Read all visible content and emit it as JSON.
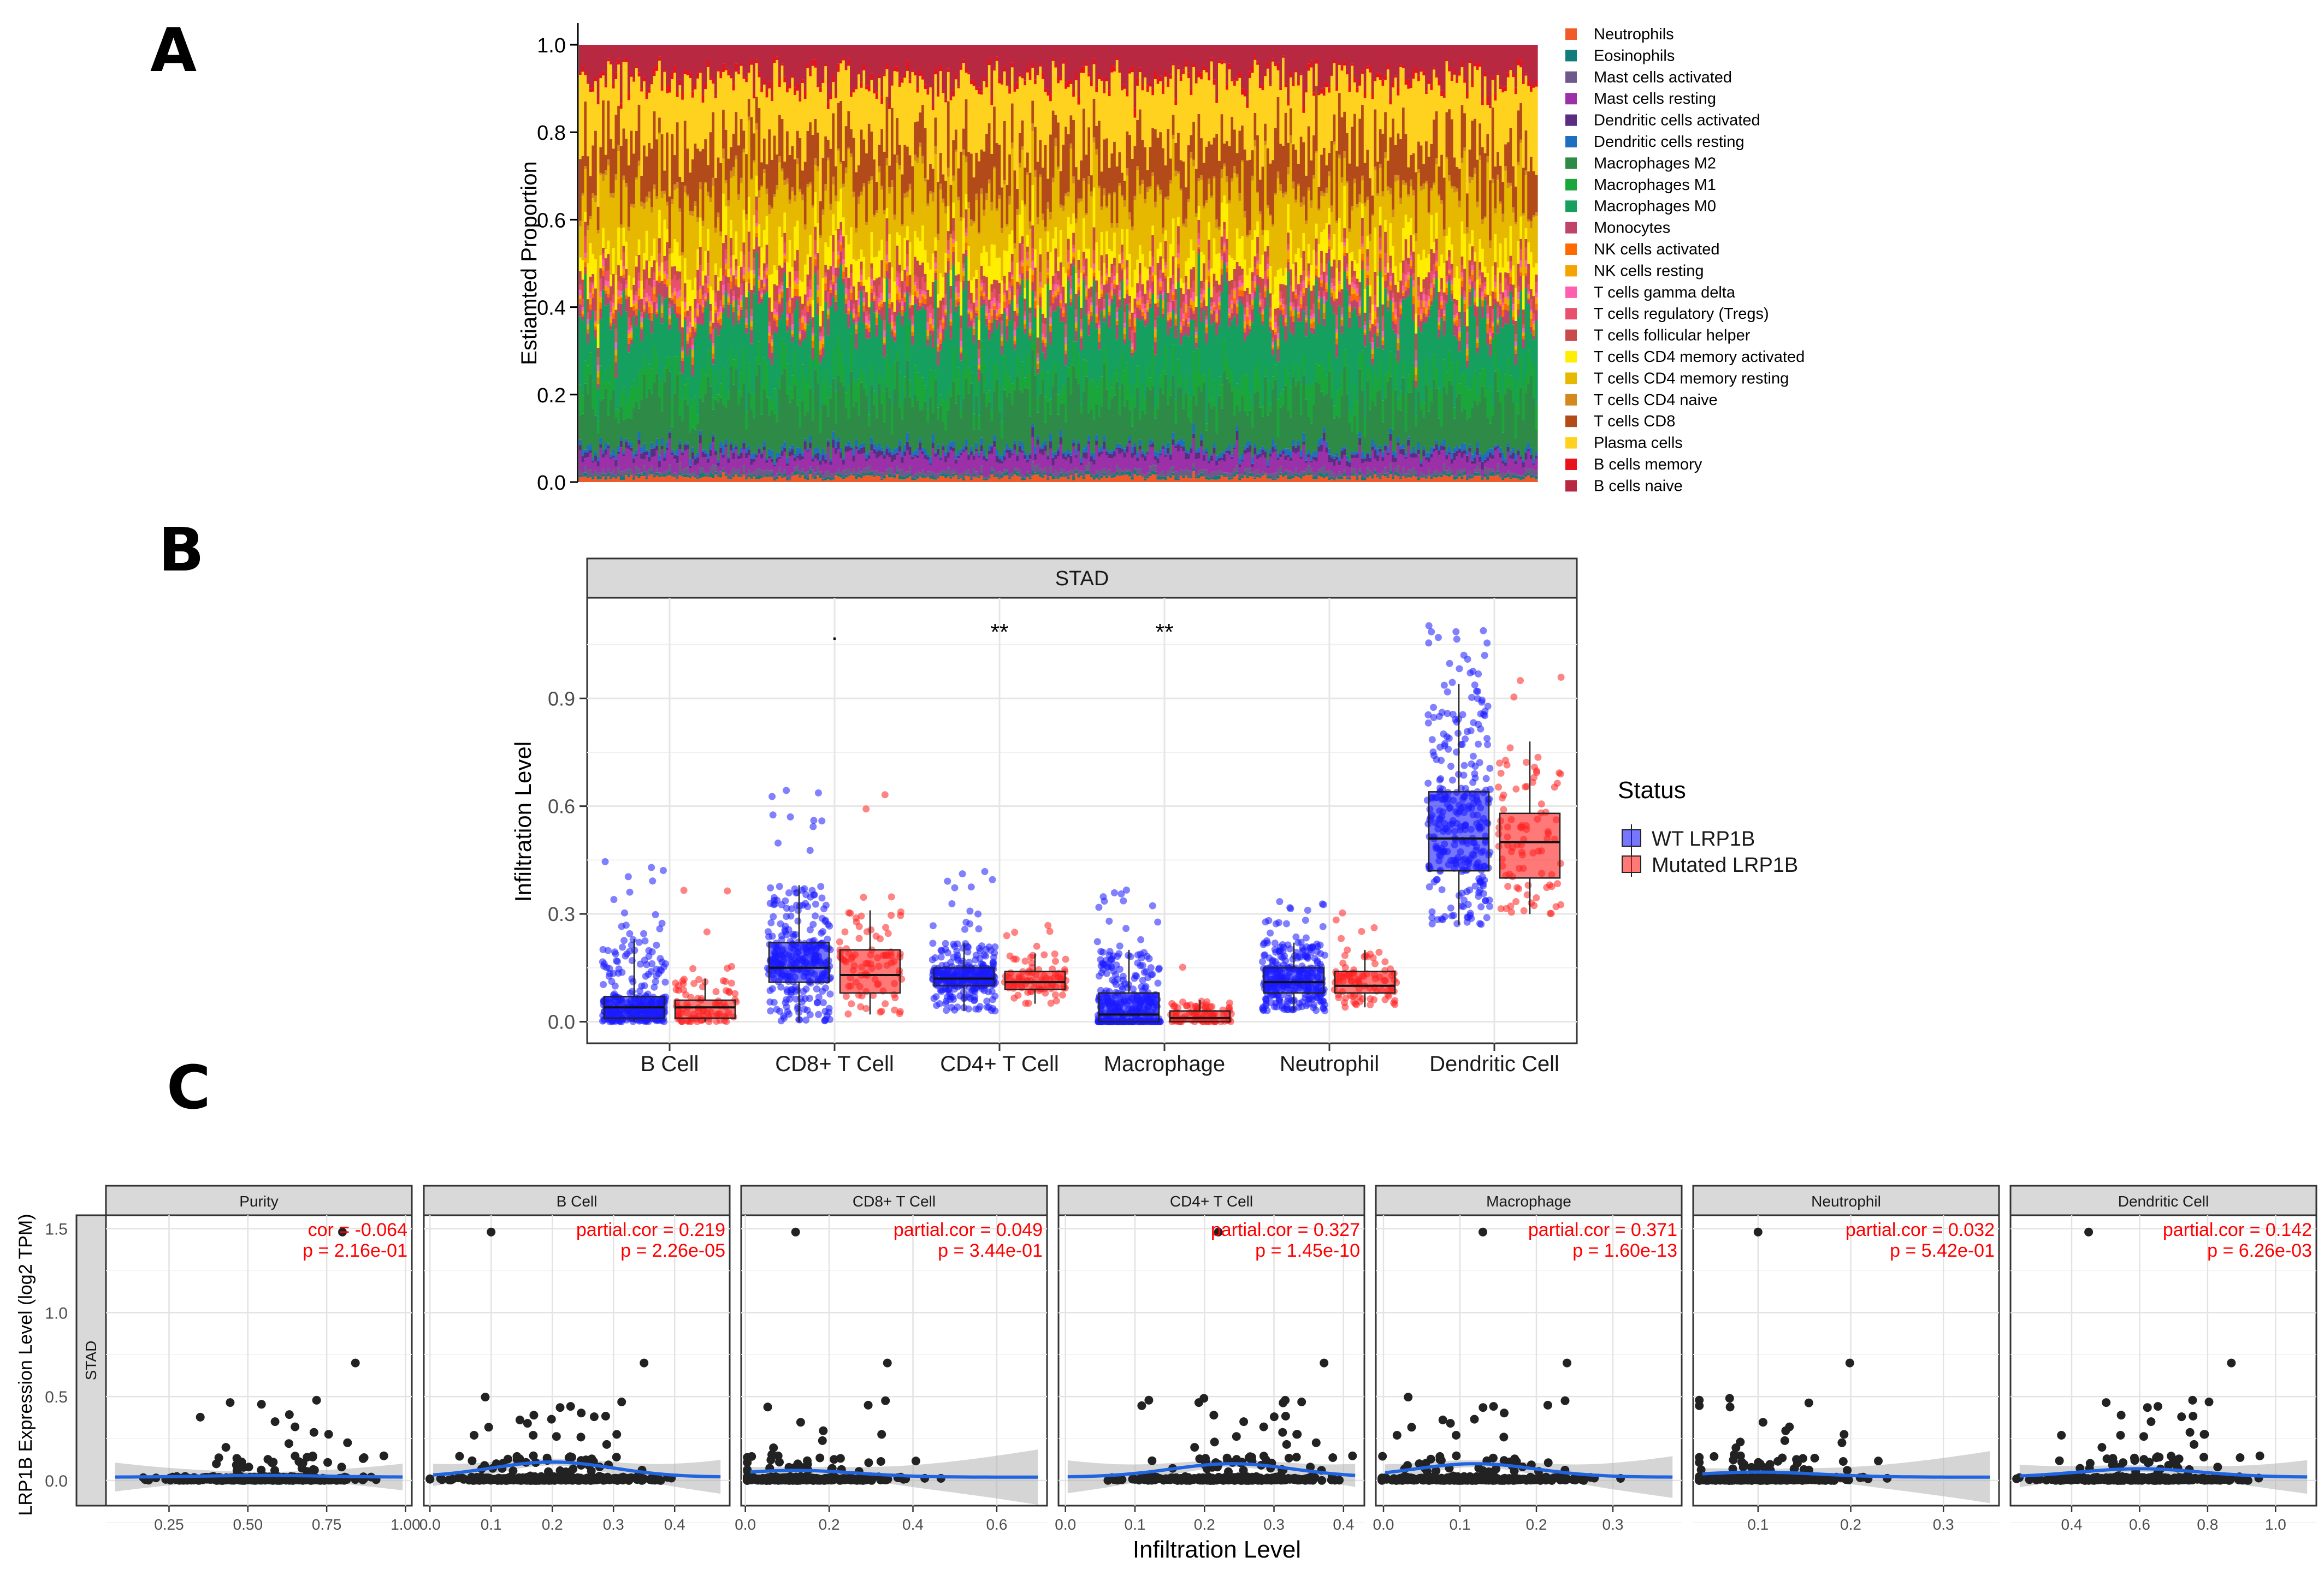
{
  "panels": {
    "A": {
      "letter": "A",
      "chart_data": {
        "type": "bar",
        "stacked": true,
        "n_samples": 375,
        "ylabel": "Estiamted Proportion",
        "ylim": [
          0,
          1.0
        ],
        "yticks": [
          "0.0",
          "0.2",
          "0.4",
          "0.6",
          "0.8",
          "1.0"
        ],
        "legend_position": "right",
        "series": [
          {
            "name": "Neutrophils",
            "color": "#f05a28",
            "mean": 0.01
          },
          {
            "name": "Eosinophils",
            "color": "#127c7c",
            "mean": 0.005
          },
          {
            "name": "Mast cells activated",
            "color": "#6d5a8a",
            "mean": 0.01
          },
          {
            "name": "Mast cells resting",
            "color": "#9b30a8",
            "mean": 0.03
          },
          {
            "name": "Dendritic cells activated",
            "color": "#5a2d82",
            "mean": 0.01
          },
          {
            "name": "Dendritic cells resting",
            "color": "#1f6fc0",
            "mean": 0.01
          },
          {
            "name": "Macrophages M2",
            "color": "#2e8b47",
            "mean": 0.1
          },
          {
            "name": "Macrophages M1",
            "color": "#1aa63a",
            "mean": 0.05
          },
          {
            "name": "Macrophages M0",
            "color": "#16a060",
            "mean": 0.13
          },
          {
            "name": "Monocytes",
            "color": "#c0446a",
            "mean": 0.02
          },
          {
            "name": "NK cells activated",
            "color": "#ff6a00",
            "mean": 0.01
          },
          {
            "name": "NK cells resting",
            "color": "#f5a300",
            "mean": 0.01
          },
          {
            "name": "T cells gamma delta",
            "color": "#ff5fb0",
            "mean": 0.01
          },
          {
            "name": "T cells regulatory (Tregs)",
            "color": "#e8506e",
            "mean": 0.02
          },
          {
            "name": "T cells follicular helper",
            "color": "#c84a4a",
            "mean": 0.03
          },
          {
            "name": "T cells CD4 memory activated",
            "color": "#ffee00",
            "mean": 0.05
          },
          {
            "name": "T cells CD4 memory resting",
            "color": "#e6b800",
            "mean": 0.12
          },
          {
            "name": "T cells CD4 naive",
            "color": "#d28a1e",
            "mean": 0.01
          },
          {
            "name": "T cells CD8",
            "color": "#b24a1a",
            "mean": 0.1
          },
          {
            "name": "Plasma cells",
            "color": "#ffd21f",
            "mean": 0.14
          },
          {
            "name": "B cells memory",
            "color": "#e8141c",
            "mean": 0.01
          },
          {
            "name": "B cells naive",
            "color": "#b82840",
            "mean": 0.07
          }
        ]
      }
    },
    "B": {
      "letter": "B",
      "chart_data": {
        "type": "box",
        "strip_title": "STAD",
        "ylabel": "Infiltration Level",
        "ylim": [
          -0.06,
          1.18
        ],
        "yticks": [
          "0.0",
          "0.3",
          "0.6",
          "0.9"
        ],
        "categories": [
          "B Cell",
          "CD8+ T Cell",
          "CD4+ T Cell",
          "Macrophage",
          "Neutrophil",
          "Dendritic Cell"
        ],
        "significance": [
          ".",
          "**",
          "**"
        ],
        "significance_position": [
          1,
          2,
          3
        ],
        "legend": {
          "title": "Status",
          "position": "right"
        },
        "series": [
          {
            "name": "WT LRP1B",
            "color": "#1a1aff",
            "n": 300,
            "boxes": [
              {
                "q1": 0.01,
                "median": 0.04,
                "q3": 0.07,
                "lo": 0.0,
                "hi": 0.23,
                "max": 0.47
              },
              {
                "q1": 0.11,
                "median": 0.15,
                "q3": 0.22,
                "lo": 0.0,
                "hi": 0.38,
                "max": 0.68
              },
              {
                "q1": 0.1,
                "median": 0.12,
                "q3": 0.15,
                "lo": 0.03,
                "hi": 0.22,
                "max": 0.42
              },
              {
                "q1": 0.0,
                "median": 0.02,
                "q3": 0.08,
                "lo": 0.0,
                "hi": 0.2,
                "max": 0.37
              },
              {
                "q1": 0.08,
                "median": 0.11,
                "q3": 0.15,
                "lo": 0.03,
                "hi": 0.22,
                "max": 0.34
              },
              {
                "q1": 0.42,
                "median": 0.51,
                "q3": 0.64,
                "lo": 0.27,
                "hi": 0.94,
                "max": 1.12
              }
            ]
          },
          {
            "name": "Mutated LRP1B",
            "color": "#ff2020",
            "n": 90,
            "boxes": [
              {
                "q1": 0.01,
                "median": 0.04,
                "q3": 0.06,
                "lo": 0.0,
                "hi": 0.12,
                "max": 0.38
              },
              {
                "q1": 0.08,
                "median": 0.13,
                "q3": 0.2,
                "lo": 0.02,
                "hi": 0.31,
                "max": 0.7
              },
              {
                "q1": 0.09,
                "median": 0.11,
                "q3": 0.14,
                "lo": 0.05,
                "hi": 0.19,
                "max": 0.3
              },
              {
                "q1": 0.0,
                "median": 0.01,
                "q3": 0.03,
                "lo": 0.0,
                "hi": 0.06,
                "max": 0.19
              },
              {
                "q1": 0.08,
                "median": 0.1,
                "q3": 0.14,
                "lo": 0.04,
                "hi": 0.2,
                "max": 0.31
              },
              {
                "q1": 0.4,
                "median": 0.5,
                "q3": 0.58,
                "lo": 0.3,
                "hi": 0.78,
                "max": 0.96
              }
            ]
          }
        ]
      }
    },
    "C": {
      "letter": "C",
      "chart_data": {
        "type": "scatter",
        "row_strip": "STAD",
        "ylabel": "LRP1B Expression Level (log2 TPM)",
        "xlabel": "Infiltration Level",
        "ylim": [
          -0.15,
          1.58
        ],
        "yticks": [
          "0.0",
          "0.5",
          "1.0",
          "1.5"
        ],
        "facets": [
          {
            "title": "Purity",
            "xlim": [
              0.05,
              1.02
            ],
            "xticks": [
              "0.25",
              "0.50",
              "0.75",
              "1.00"
            ],
            "corr_label": "cor = -0.064",
            "p_label": "p = 2.16e-01",
            "outlier_x": 0.8,
            "mid_x": 0.55,
            "hump": 0.01
          },
          {
            "title": "B Cell",
            "xlim": [
              -0.01,
              0.49
            ],
            "xticks": [
              "0.0",
              "0.1",
              "0.2",
              "0.3",
              "0.4"
            ],
            "corr_label": "partial.cor = 0.219",
            "p_label": "p = 2.26e-05",
            "outlier_x": 0.1,
            "mid_x": 0.2,
            "hump": 0.09
          },
          {
            "title": "CD8+ T Cell",
            "xlim": [
              -0.01,
              0.72
            ],
            "xticks": [
              "0.0",
              "0.2",
              "0.4",
              "0.6"
            ],
            "corr_label": "partial.cor = 0.049",
            "p_label": "p = 3.44e-01",
            "outlier_x": 0.12,
            "mid_x": 0.12,
            "hump": 0.04
          },
          {
            "title": "CD4+ T Cell",
            "xlim": [
              -0.01,
              0.43
            ],
            "xticks": [
              "0.0",
              "0.1",
              "0.2",
              "0.3",
              "0.4"
            ],
            "corr_label": "partial.cor = 0.327",
            "p_label": "p = 1.45e-10",
            "outlier_x": 0.22,
            "mid_x": 0.24,
            "hump": 0.08
          },
          {
            "title": "Macrophage",
            "xlim": [
              -0.01,
              0.39
            ],
            "xticks": [
              "0.0",
              "0.1",
              "0.2",
              "0.3"
            ],
            "corr_label": "partial.cor = 0.371",
            "p_label": "p = 1.60e-13",
            "outlier_x": 0.13,
            "mid_x": 0.12,
            "hump": 0.08
          },
          {
            "title": "Neutrophil",
            "xlim": [
              0.03,
              0.36
            ],
            "xticks": [
              "0.1",
              "0.2",
              "0.3"
            ],
            "corr_label": "partial.cor = 0.032",
            "p_label": "p = 5.42e-01",
            "outlier_x": 0.1,
            "mid_x": 0.1,
            "hump": 0.03
          },
          {
            "title": "Dendritic Cell",
            "xlim": [
              0.22,
              1.12
            ],
            "xticks": [
              "0.4",
              "0.6",
              "0.8",
              "1.0"
            ],
            "corr_label": "partial.cor = 0.142",
            "p_label": "p = 6.26e-03",
            "outlier_x": 0.45,
            "mid_x": 0.6,
            "hump": 0.05
          }
        ]
      }
    }
  }
}
